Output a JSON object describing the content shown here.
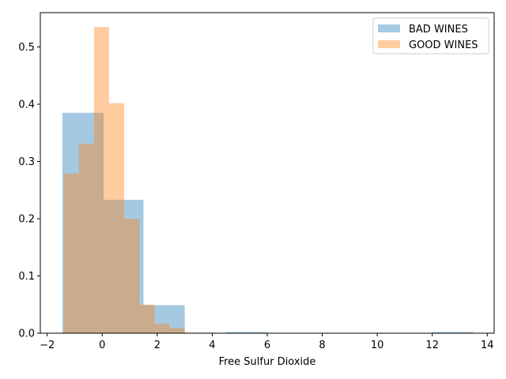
{
  "chart_data": {
    "type": "bar",
    "title": "",
    "xlabel": "Free Sulfur Dioxide",
    "ylabel": "",
    "xlim": [
      -2.25,
      14.25
    ],
    "ylim": [
      0,
      0.56
    ],
    "xticks": [
      -2,
      0,
      2,
      4,
      6,
      8,
      10,
      12,
      14
    ],
    "yticks": [
      0.0,
      0.1,
      0.2,
      0.3,
      0.4,
      0.5
    ],
    "xtick_labels": [
      "−2",
      "0",
      "2",
      "4",
      "6",
      "8",
      "10",
      "12",
      "14"
    ],
    "ytick_labels": [
      "0.0",
      "0.1",
      "0.2",
      "0.3",
      "0.4",
      "0.5"
    ],
    "grid": false,
    "legend_position": "top-right",
    "series": [
      {
        "name": "BAD WINES",
        "color": "#1f77b4",
        "opacity": 0.4,
        "bins": [
          {
            "x0": -1.45,
            "x1": 0.05,
            "y": 0.385
          },
          {
            "x0": 0.05,
            "x1": 1.5,
            "y": 0.233
          },
          {
            "x0": 1.5,
            "x1": 3.0,
            "y": 0.049
          },
          {
            "x0": 3.0,
            "x1": 4.5,
            "y": 0.0
          },
          {
            "x0": 4.5,
            "x1": 6.0,
            "y": 0.002
          },
          {
            "x0": 6.0,
            "x1": 7.5,
            "y": 0.0
          },
          {
            "x0": 7.5,
            "x1": 9.0,
            "y": 0.0
          },
          {
            "x0": 9.0,
            "x1": 10.5,
            "y": 0.0
          },
          {
            "x0": 10.5,
            "x1": 12.0,
            "y": 0.0
          },
          {
            "x0": 12.0,
            "x1": 13.5,
            "y": 0.002
          }
        ]
      },
      {
        "name": "GOOD WINES",
        "color": "#ff7f0e",
        "opacity": 0.4,
        "bins": [
          {
            "x0": -1.4,
            "x1": -0.85,
            "y": 0.279
          },
          {
            "x0": -0.85,
            "x1": -0.3,
            "y": 0.331
          },
          {
            "x0": -0.3,
            "x1": 0.25,
            "y": 0.535
          },
          {
            "x0": 0.25,
            "x1": 0.8,
            "y": 0.402
          },
          {
            "x0": 0.8,
            "x1": 1.35,
            "y": 0.2
          },
          {
            "x0": 1.35,
            "x1": 1.9,
            "y": 0.05
          },
          {
            "x0": 1.9,
            "x1": 2.45,
            "y": 0.017
          },
          {
            "x0": 2.45,
            "x1": 3.0,
            "y": 0.009
          },
          {
            "x0": 3.0,
            "x1": 3.55,
            "y": 0.001
          },
          {
            "x0": 3.55,
            "x1": 4.1,
            "y": 0.001
          }
        ]
      }
    ]
  }
}
